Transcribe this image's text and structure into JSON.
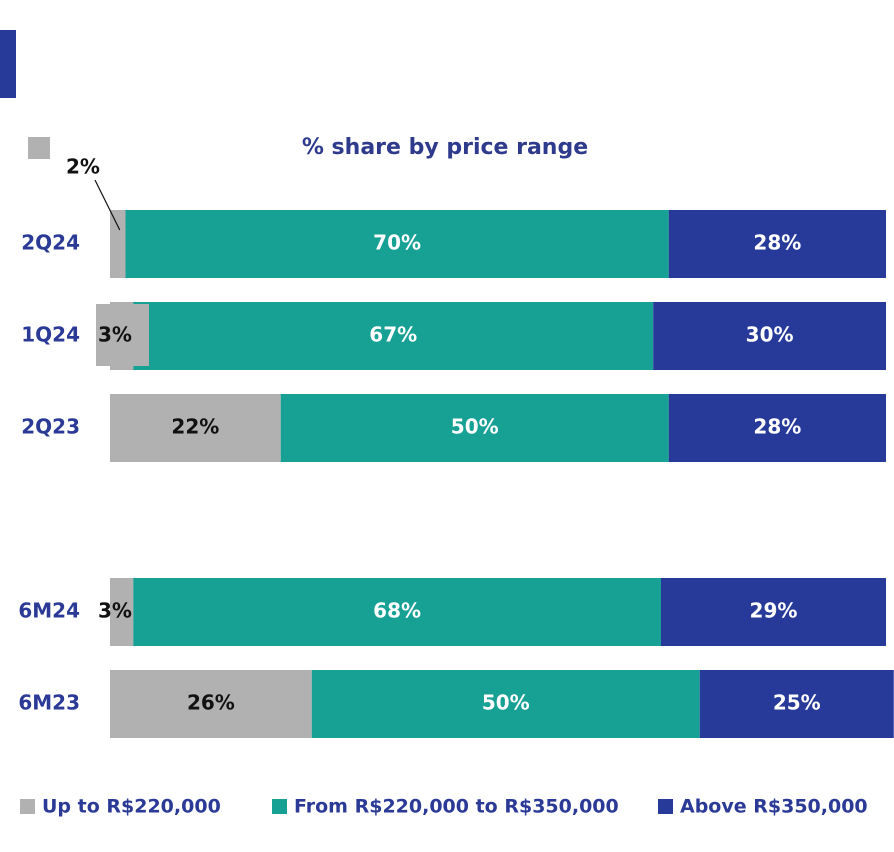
{
  "chart_data": {
    "type": "bar",
    "orientation": "horizontal",
    "stacked": true,
    "title": "% share by price range",
    "categories": [
      "2Q24",
      "1Q24",
      "2Q23",
      "6M24",
      "6M23"
    ],
    "xlim": [
      0,
      100
    ],
    "series": [
      {
        "name": "Up to R$220,000",
        "color": "#b1b1b1",
        "values": [
          2,
          3,
          22,
          3,
          26
        ],
        "value_labels": [
          "2%",
          "3%",
          "22%",
          "3%",
          "26%"
        ]
      },
      {
        "name": "From R$220,000 to R$350,000",
        "color": "#17a094",
        "values": [
          70,
          67,
          50,
          68,
          50
        ],
        "value_labels": [
          "70%",
          "67%",
          "50%",
          "68%",
          "50%"
        ]
      },
      {
        "name": "Above R$350,000",
        "color": "#283a99",
        "values": [
          28,
          30,
          28,
          29,
          25
        ],
        "value_labels": [
          "28%",
          "30%",
          "28%",
          "29%",
          "25%"
        ]
      }
    ]
  }
}
